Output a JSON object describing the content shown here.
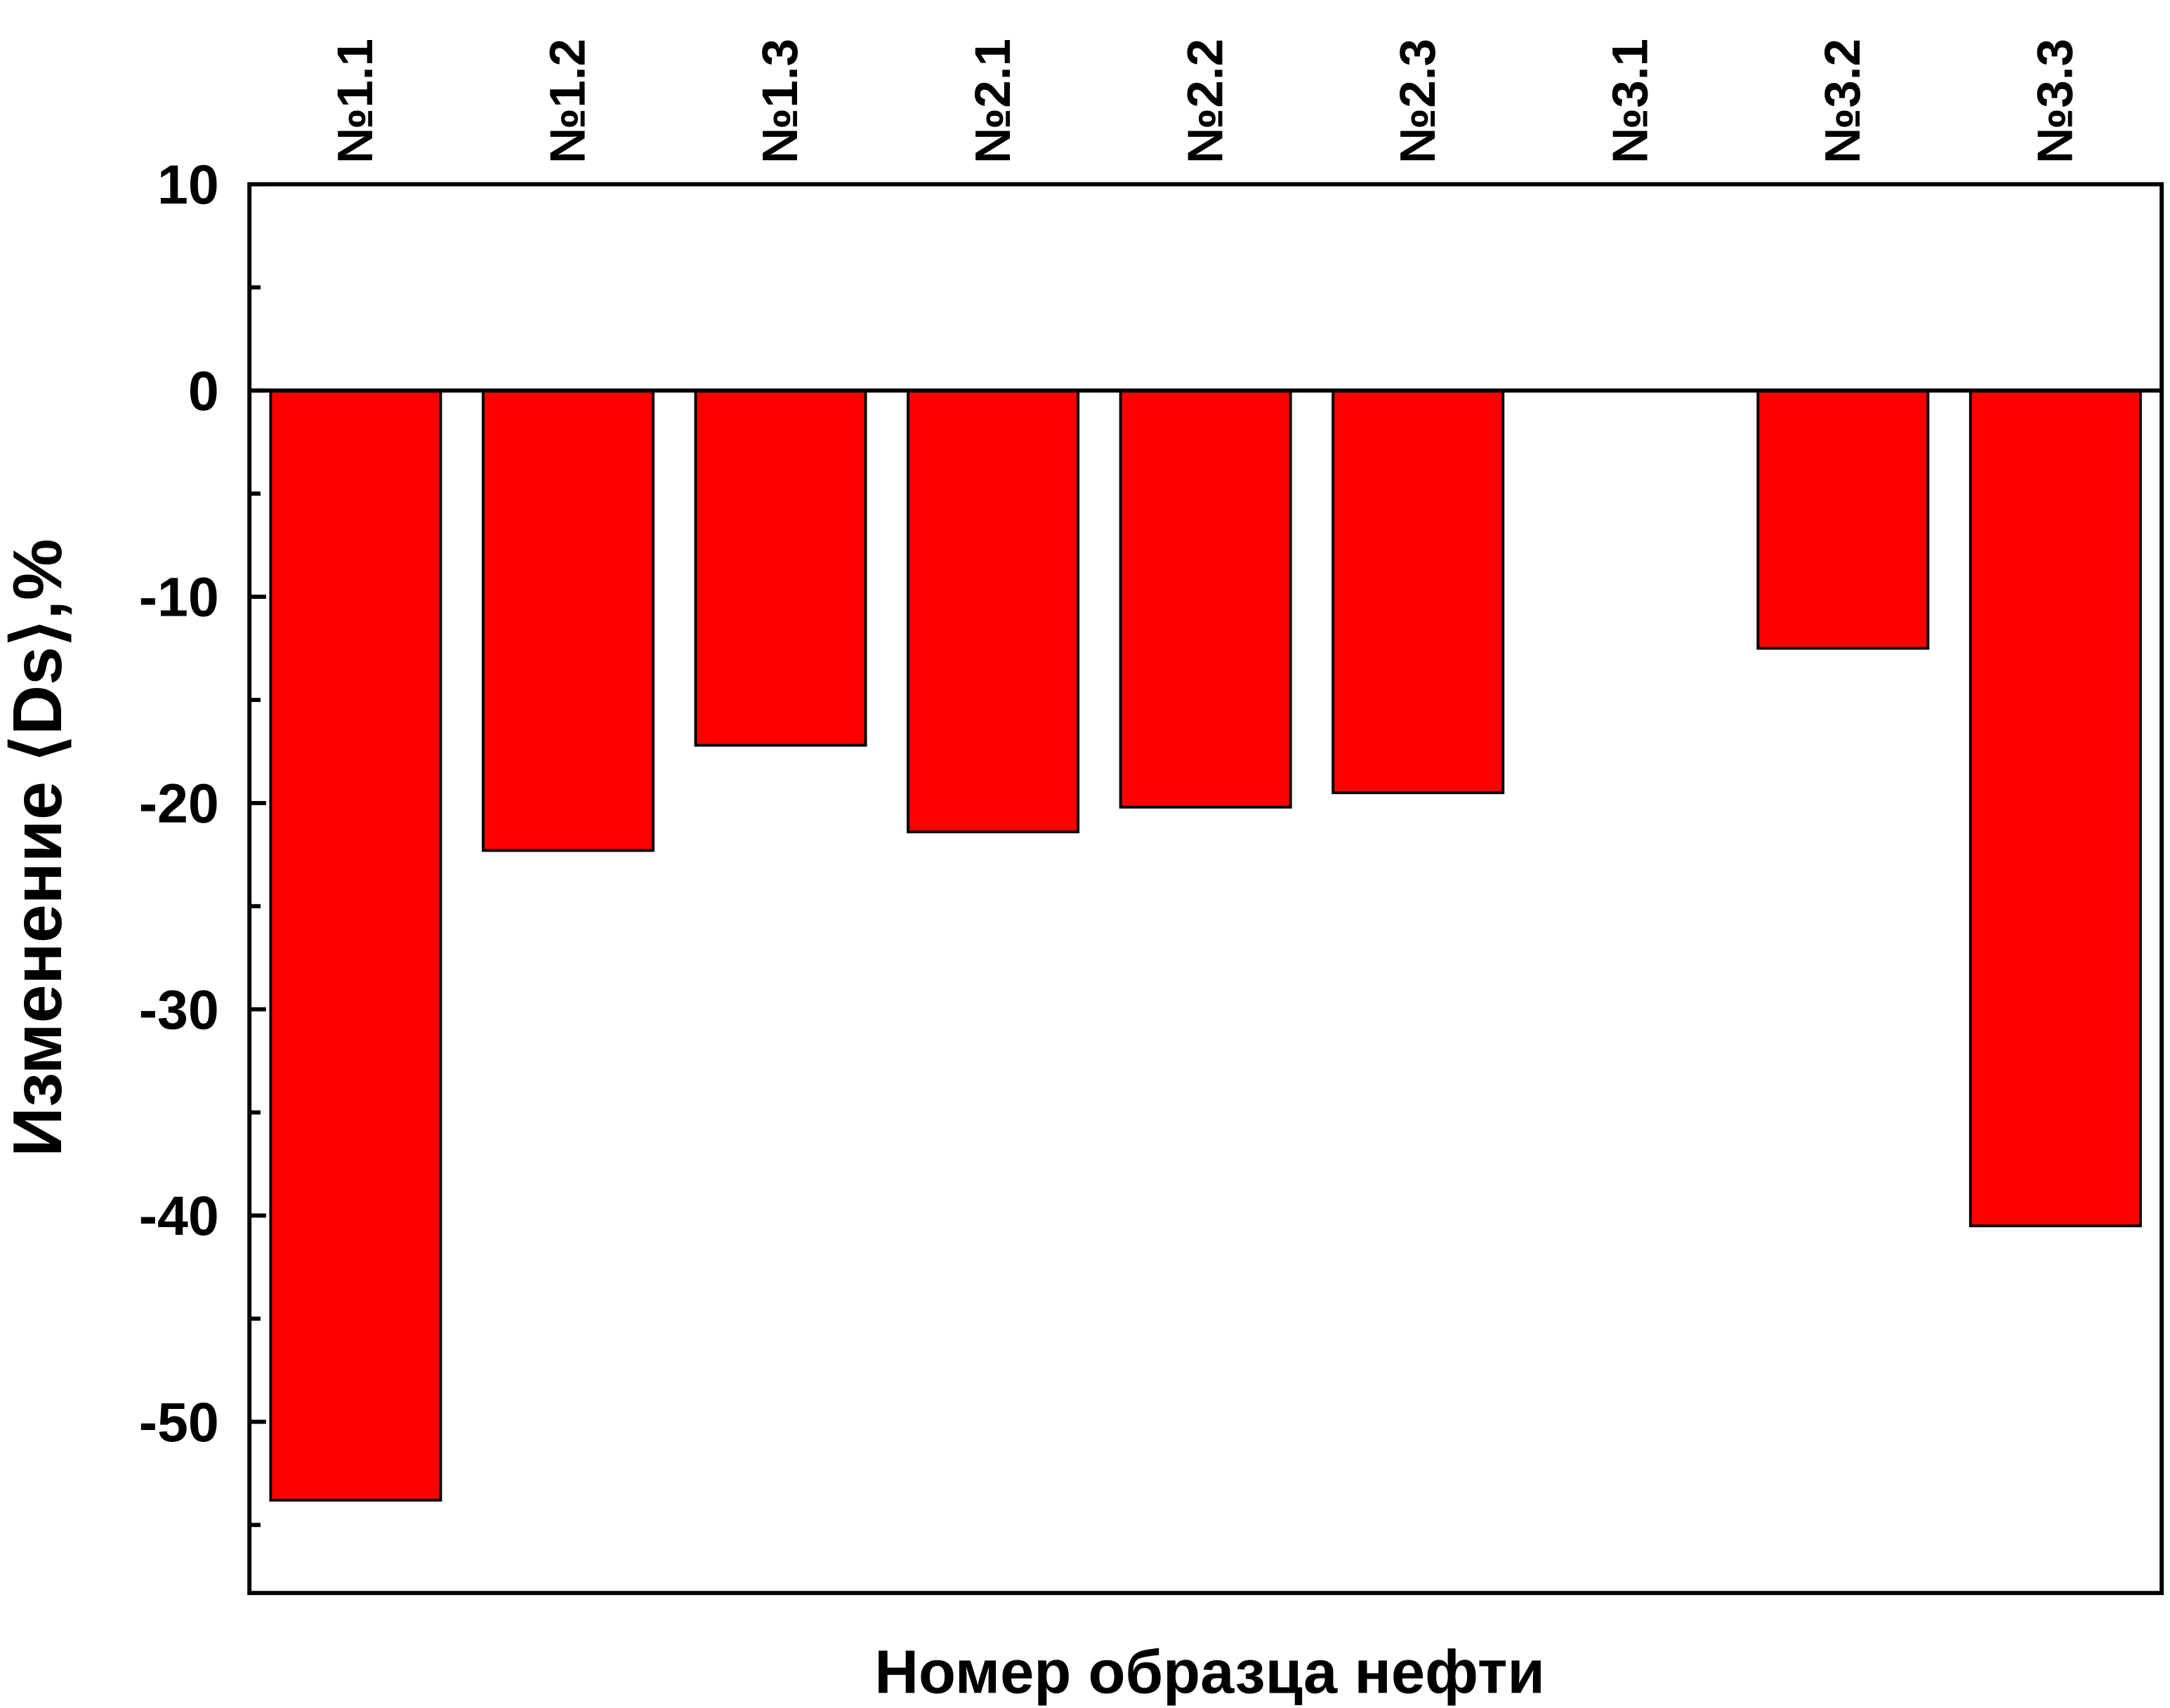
{
  "chart_data": {
    "type": "bar",
    "x_label": "Номер образца нефти",
    "y_label": "Изменение ⟨Ds⟩,%",
    "categories": [
      "№1.1",
      "№1.2",
      "№1.3",
      "№2.1",
      "№2.2",
      "№2.3",
      "№3.1",
      "№3.2",
      "№3.3"
    ],
    "values": [
      -53.8,
      -22.3,
      -17.2,
      -21.4,
      -20.2,
      -19.5,
      0,
      -12.5,
      -40.5
    ],
    "color": "#ff0000",
    "ylim": [
      -58.3,
      10
    ],
    "yticks": [
      10,
      0,
      -10,
      -20,
      -30,
      -40,
      -50
    ],
    "minor_yticks": [
      5,
      -5,
      -15,
      -25,
      -35,
      -45,
      -55
    ]
  }
}
